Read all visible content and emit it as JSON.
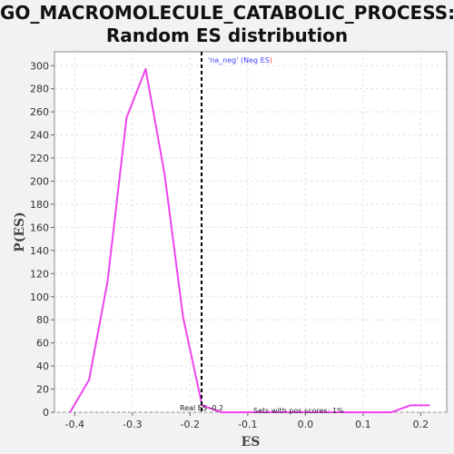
{
  "chart_data": {
    "type": "line",
    "title_line1": "GO_MACROMOLECULE_CATABOLIC_PROCESS:",
    "title_line2": "Random ES distribution",
    "xlabel": "ES",
    "ylabel": "P(ES)",
    "xlim": [
      -0.435,
      0.245
    ],
    "ylim": [
      0,
      312
    ],
    "xticks": [
      -0.4,
      -0.3,
      -0.2,
      -0.1,
      0.0,
      0.1,
      0.2
    ],
    "xtick_labels": [
      "-0.4",
      "-0.3",
      "-0.2",
      "-0.1",
      "0.0",
      "0.1",
      "0.2"
    ],
    "yticks": [
      0,
      20,
      40,
      60,
      80,
      100,
      120,
      140,
      160,
      180,
      200,
      220,
      240,
      260,
      280,
      300
    ],
    "grid": true,
    "series": [
      {
        "color": "#ee44ee",
        "x": [
          -0.408,
          -0.375,
          -0.343,
          -0.31,
          -0.277,
          -0.244,
          -0.212,
          -0.179,
          -0.146,
          -0.113,
          -0.08,
          -0.048,
          -0.015,
          0.018,
          0.051,
          0.083,
          0.116,
          0.149,
          0.182,
          0.215
        ],
        "y": [
          0,
          28,
          113,
          255,
          297,
          206,
          82,
          6,
          0,
          0,
          0,
          0,
          0,
          0,
          0,
          0,
          0,
          0,
          6,
          6
        ]
      }
    ],
    "real_es": -0.18,
    "real_es_label": "Real ES -0.2",
    "pos_scores_label": "Sets with pos scores: 1%",
    "legend_parts": [
      "'na_neg'",
      " (Neg ES",
      ")"
    ],
    "legend_colors": [
      "#4444ff",
      "#4444ff",
      "#ff4444"
    ]
  }
}
